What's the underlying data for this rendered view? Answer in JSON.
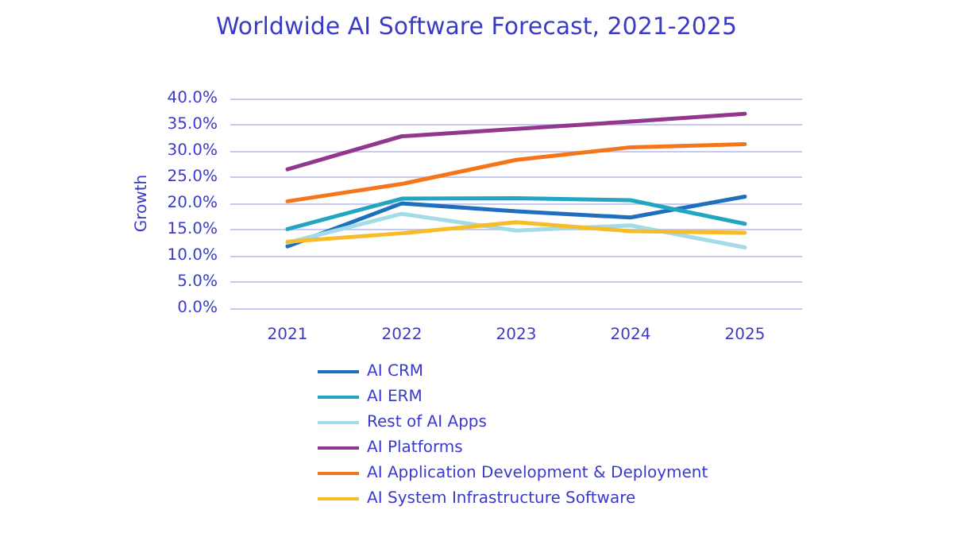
{
  "chart_data": {
    "type": "line",
    "title": "Worldwide AI Software Forecast, 2021-2025",
    "ylabel": "Growth",
    "categories": [
      "2021",
      "2022",
      "2023",
      "2024",
      "2025"
    ],
    "series": [
      {
        "name": "AI CRM",
        "color": "#1f6fbf",
        "values": [
          11.8,
          20.0,
          18.5,
          17.3,
          21.3
        ]
      },
      {
        "name": "AI ERM",
        "color": "#22a5c1",
        "values": [
          15.1,
          20.9,
          21.0,
          20.6,
          16.1
        ]
      },
      {
        "name": "Rest of AI Apps",
        "color": "#a3dbe8",
        "values": [
          12.5,
          18.0,
          14.8,
          15.8,
          11.6
        ]
      },
      {
        "name": "AI Platforms",
        "color": "#93368e",
        "values": [
          26.5,
          32.8,
          34.2,
          35.6,
          37.1
        ]
      },
      {
        "name": "AI Application Development & Deployment",
        "color": "#f5761a",
        "values": [
          20.4,
          23.7,
          28.3,
          30.7,
          31.3
        ]
      },
      {
        "name": "AI System Infrastructure Software",
        "color": "#f7bd28",
        "values": [
          12.7,
          14.3,
          16.4,
          14.7,
          14.4
        ]
      }
    ],
    "ylim": [
      0,
      40
    ],
    "yticks": [
      {
        "value": 0,
        "label": "0.0%"
      },
      {
        "value": 5,
        "label": "5.0%"
      },
      {
        "value": 10,
        "label": "10.0%"
      },
      {
        "value": 15,
        "label": "15.0%"
      },
      {
        "value": 20,
        "label": "20.0%"
      },
      {
        "value": 25,
        "label": "25.0%"
      },
      {
        "value": 30,
        "label": "30.0%"
      },
      {
        "value": 35,
        "label": "35.0%"
      },
      {
        "value": 40,
        "label": "40.0%"
      }
    ],
    "grid": "y",
    "legend": "bottom",
    "marker": "none",
    "line_style": "solid"
  }
}
